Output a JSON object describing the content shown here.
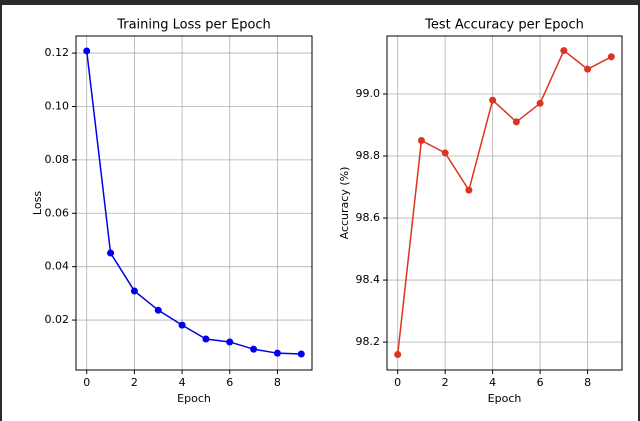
{
  "chart_data": [
    {
      "type": "line",
      "title": "Training Loss per Epoch",
      "xlabel": "Epoch",
      "ylabel": "Loss",
      "x": [
        0,
        1,
        2,
        3,
        4,
        5,
        6,
        7,
        8,
        9
      ],
      "series": [
        {
          "name": "Loss",
          "color": "#0000ee",
          "values": [
            0.1208,
            0.0451,
            0.0309,
            0.0237,
            0.0181,
            0.0129,
            0.0118,
            0.0091,
            0.0076,
            0.0073
          ]
        }
      ],
      "xlim": [
        -0.45,
        9.45
      ],
      "xticks": [
        0,
        2,
        4,
        6,
        8
      ],
      "ylim": [
        0.0013,
        0.1264
      ],
      "yticks": [
        0.02,
        0.04,
        0.06,
        0.08,
        {
          "value": 0.1,
          "label": "0.10"
        },
        0.12
      ],
      "grid": true
    },
    {
      "type": "line",
      "title": "Test Accuracy per Epoch",
      "xlabel": "Epoch",
      "ylabel": "Accuracy (%)",
      "x": [
        0,
        1,
        2,
        3,
        4,
        5,
        6,
        7,
        8,
        9
      ],
      "series": [
        {
          "name": "Accuracy",
          "color": "#dd3322",
          "values": [
            98.16,
            98.85,
            98.81,
            98.69,
            98.98,
            98.91,
            98.97,
            99.14,
            99.08,
            99.12
          ]
        }
      ],
      "xlim": [
        -0.45,
        9.45
      ],
      "xticks": [
        0,
        2,
        4,
        6,
        8
      ],
      "ylim": [
        98.11,
        99.187
      ],
      "yticks": [
        98.2,
        98.4,
        98.6,
        98.8,
        {
          "value": 99,
          "label": "99.0"
        }
      ],
      "grid": true
    }
  ]
}
